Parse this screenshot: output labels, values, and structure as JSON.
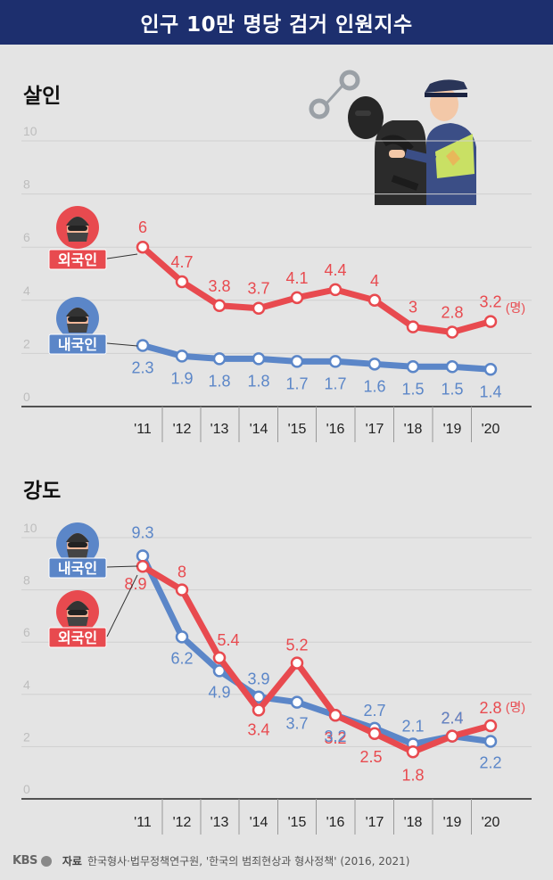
{
  "header": {
    "title": "인구 10만 명당 검거 인원지수"
  },
  "footer": {
    "logo": "KBS",
    "source_label": "자료",
    "source_text": "한국형사·법무정책연구원, '한국의 범죄현상과 형사정책' (2016, 2021)"
  },
  "chart_data": [
    {
      "type": "line",
      "title": "살인",
      "categories": [
        "'11",
        "'12",
        "'13",
        "'14",
        "'15",
        "'16",
        "'17",
        "'18",
        "'19",
        "'20"
      ],
      "y_ticks": [
        "0",
        "2",
        "4",
        "6",
        "8",
        "10"
      ],
      "ylim": [
        0,
        10
      ],
      "unit_label": "(명)",
      "grid": true,
      "series": [
        {
          "name": "외국인",
          "color": "#e84a4f",
          "values": [
            6,
            4.7,
            3.8,
            3.7,
            4.1,
            4.4,
            4,
            3,
            2.8,
            3.2
          ]
        },
        {
          "name": "내국인",
          "color": "#5b86c8",
          "values": [
            2.3,
            1.9,
            1.8,
            1.8,
            1.7,
            1.7,
            1.6,
            1.5,
            1.5,
            1.4
          ]
        }
      ]
    },
    {
      "type": "line",
      "title": "강도",
      "categories": [
        "'11",
        "'12",
        "'13",
        "'14",
        "'15",
        "'16",
        "'17",
        "'18",
        "'19",
        "'20"
      ],
      "y_ticks": [
        "0",
        "2",
        "4",
        "6",
        "8",
        "10"
      ],
      "ylim": [
        0,
        10
      ],
      "unit_label": "(명)",
      "grid": true,
      "series": [
        {
          "name": "외국인",
          "color": "#e84a4f",
          "values": [
            8.9,
            8,
            5.4,
            3.4,
            5.2,
            3.2,
            2.5,
            1.8,
            2.4,
            2.8
          ]
        },
        {
          "name": "내국인",
          "color": "#5b86c8",
          "values": [
            9.3,
            6.2,
            4.9,
            3.9,
            3.7,
            3.2,
            2.7,
            2.1,
            2.4,
            2.2
          ]
        }
      ]
    }
  ]
}
